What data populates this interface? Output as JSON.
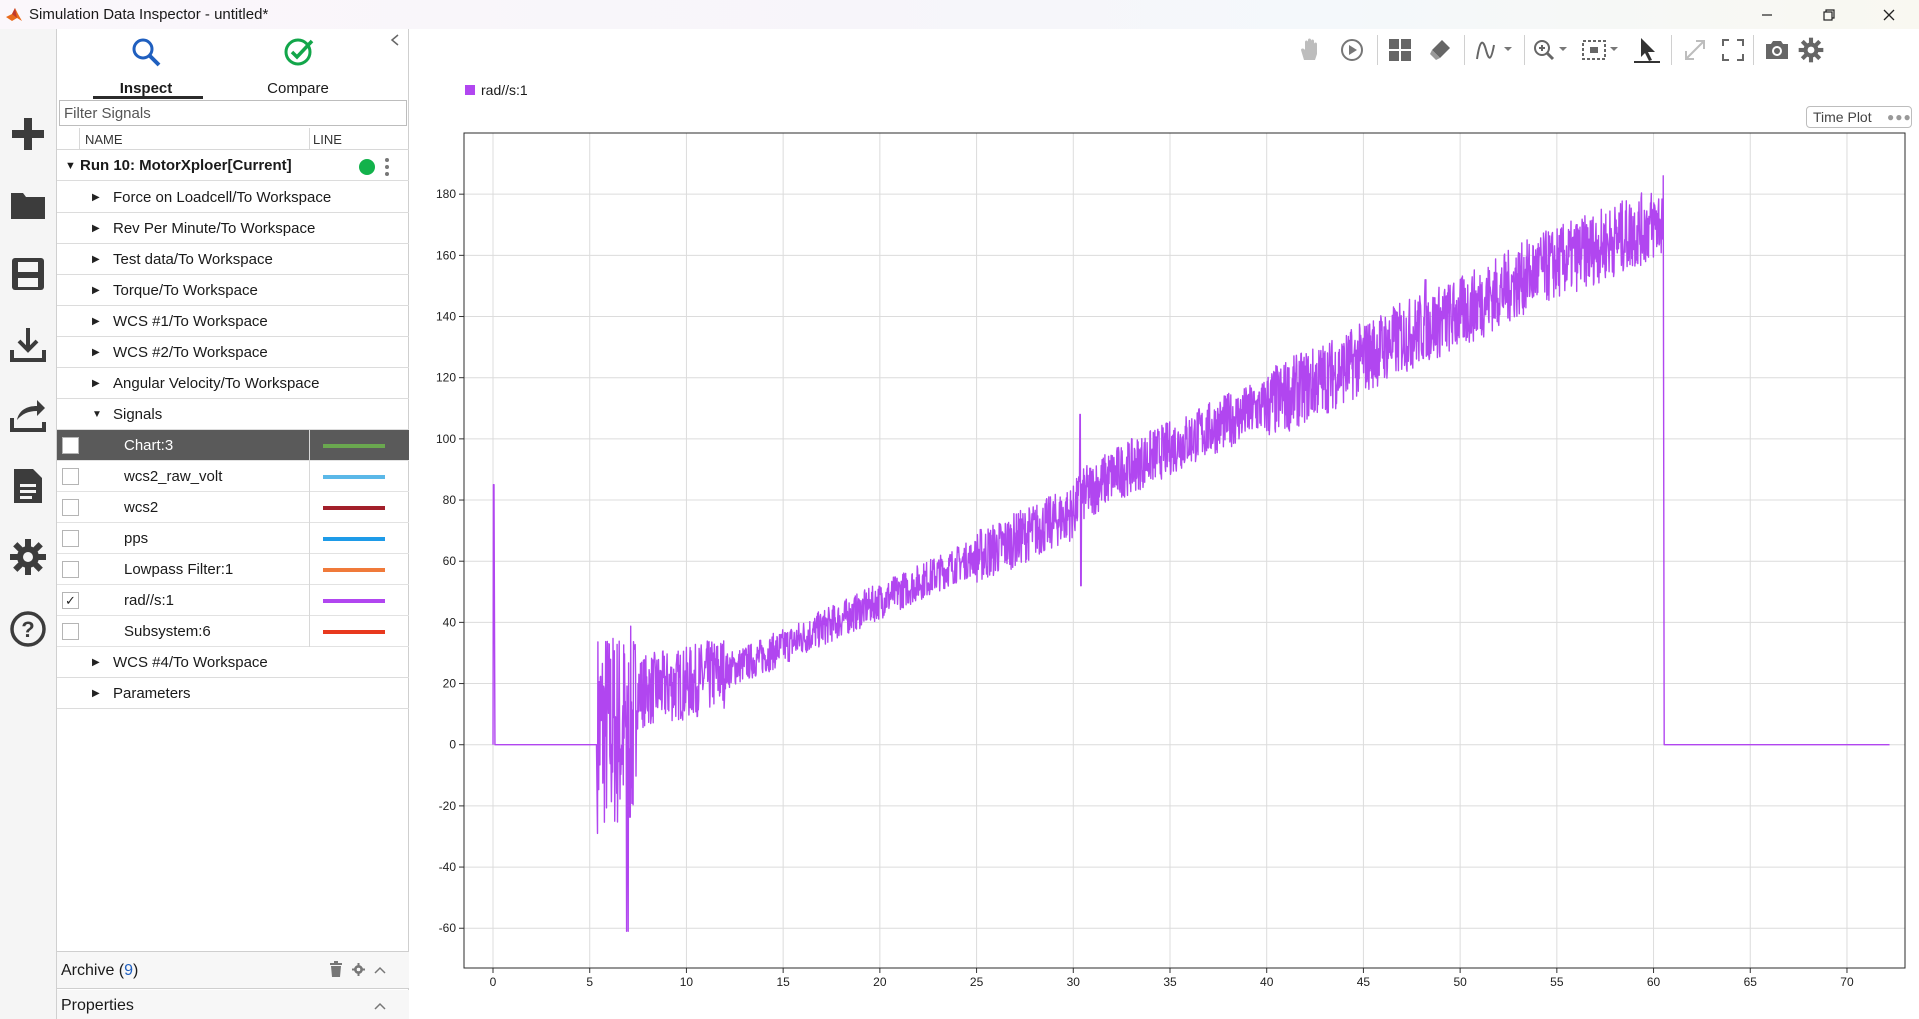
{
  "window": {
    "title": "Simulation Data Inspector - untitled*",
    "controls": [
      "minimize",
      "restore",
      "close"
    ]
  },
  "toolstrip": {
    "icons": [
      "plus-icon",
      "folder-icon",
      "save-icon",
      "download-icon",
      "share-icon",
      "report-icon",
      "gear-icon",
      "help-icon"
    ]
  },
  "panel": {
    "tabs": [
      {
        "label": "Inspect",
        "icon": "search-icon",
        "active": true
      },
      {
        "label": "Compare",
        "icon": "check-circle-icon",
        "active": false
      }
    ],
    "filter_placeholder": "Filter Signals",
    "columns": {
      "name": "NAME",
      "line": "LINE"
    },
    "run": {
      "name": "Run 10: MotorXploer[Current]",
      "status_color": "#12b24b"
    },
    "groups_before": [
      "Force on Loadcell/To Workspace",
      "Rev Per Minute/To Workspace",
      "Test data/To Workspace",
      "Torque/To Workspace",
      "WCS #1/To Workspace",
      "WCS #2/To Workspace",
      "Angular Velocity/To Workspace"
    ],
    "signals_group": "Signals",
    "signals": [
      {
        "name": "Chart:3",
        "color": "#6aa84f",
        "checked": false,
        "selected": true
      },
      {
        "name": "wcs2_raw_volt",
        "color": "#5bb8e8",
        "checked": false,
        "selected": false
      },
      {
        "name": "wcs2",
        "color": "#a21f2a",
        "checked": false,
        "selected": false
      },
      {
        "name": "pps",
        "color": "#1e9be8",
        "checked": false,
        "selected": false
      },
      {
        "name": "Lowpass Filter:1",
        "color": "#f07a3a",
        "checked": false,
        "selected": false
      },
      {
        "name": "rad//s:1",
        "color": "#b146f0",
        "checked": true,
        "selected": false
      },
      {
        "name": "Subsystem:6",
        "color": "#e8391e",
        "checked": false,
        "selected": false
      }
    ],
    "groups_after": [
      "WCS #4/To Workspace",
      "Parameters"
    ],
    "archive": {
      "label": "Archive",
      "count": "9"
    },
    "properties": {
      "label": "Properties"
    }
  },
  "plot": {
    "toolbar_icons": [
      "pan-icon",
      "replay-icon",
      "layout-icon",
      "eraser-icon",
      "signal-icon",
      "zoom-icon",
      "fit-icon",
      "cursor-icon",
      "expand-icon",
      "fullscreen-icon",
      "camera-icon",
      "settings-icon"
    ],
    "time_plot_label": "Time Plot",
    "time_plot_dots": "●●●"
  },
  "chart_data": {
    "type": "line",
    "series": [
      {
        "name": "rad//s:1",
        "color": "#b146f0",
        "x": [
          0,
          0.02,
          0.05,
          0.1,
          5.35,
          5.36,
          5.8,
          6.2,
          6.6,
          7.0,
          7.4,
          8,
          9,
          10,
          12,
          14,
          16,
          18,
          20,
          22,
          24,
          26,
          28,
          30,
          30.3,
          30.6,
          32,
          34,
          36,
          38,
          40,
          42,
          44,
          46,
          48,
          50,
          52,
          54,
          56,
          58,
          60,
          60.5,
          60.6,
          72.2
        ],
        "y": [
          0,
          85,
          85,
          0,
          0,
          10,
          12,
          14,
          15,
          16,
          17,
          18,
          19,
          20,
          24,
          29,
          35,
          41,
          47,
          53,
          59,
          64,
          70,
          76,
          80,
          82,
          88,
          94,
          100,
          106,
          111,
          117,
          123,
          130,
          136,
          141,
          148,
          155,
          160,
          165,
          170,
          172,
          0,
          0
        ],
        "noise_band": [
          {
            "x0": 5.4,
            "x1": 7.4,
            "amp": 34
          },
          {
            "x0": 7.4,
            "x1": 12,
            "amp": 12
          },
          {
            "x0": 12,
            "x1": 25,
            "amp": 6
          },
          {
            "x0": 25,
            "x1": 40,
            "amp": 9
          },
          {
            "x0": 40,
            "x1": 60.5,
            "amp": 12
          }
        ]
      }
    ],
    "xlim": [
      -1.5,
      73
    ],
    "ylim": [
      -73,
      200
    ],
    "xticks": [
      0,
      5,
      10,
      15,
      20,
      25,
      30,
      35,
      40,
      45,
      50,
      55,
      60,
      65,
      70
    ],
    "yticks": [
      -60,
      -40,
      -20,
      0,
      20,
      40,
      60,
      80,
      100,
      120,
      140,
      160,
      180
    ],
    "grid": true,
    "legend": "top-left"
  }
}
